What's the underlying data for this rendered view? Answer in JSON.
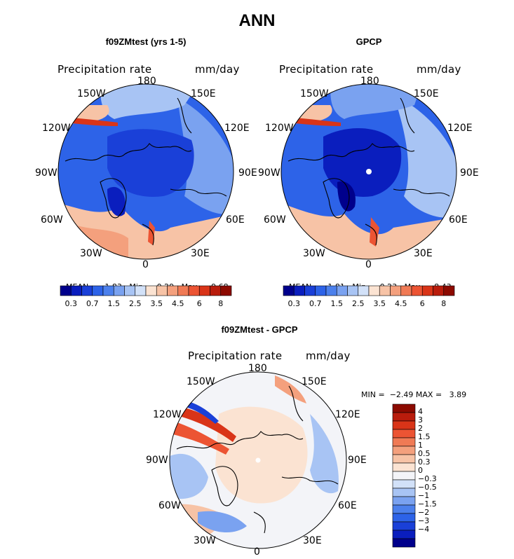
{
  "page": {
    "title": "ANN"
  },
  "panels": [
    {
      "id": "model",
      "title": "f09ZMtest (yrs 1-5)",
      "left_label": "Precipitation rate",
      "right_label": "mm/day",
      "stats": {
        "mean_label": "MEAN=",
        "mean": "1.83",
        "min_label": "Min=",
        "min": "0.29",
        "max_label": "Max=",
        "max": "9.68"
      }
    },
    {
      "id": "obs",
      "title": "GPCP",
      "left_label": "Precipitation rate",
      "right_label": "mm/day",
      "stats": {
        "mean_label": "MEAN=",
        "mean": "1.81",
        "min_label": "Min=",
        "min": "0.23",
        "max_label": "Max=",
        "max": "8.43"
      }
    },
    {
      "id": "diff",
      "title": "f09ZMtest - GPCP",
      "left_label": "Precipitation rate",
      "right_label": "mm/day",
      "stats": {
        "min_label": "MIN =",
        "min": "−2.49",
        "max_label": "MAX =",
        "max": "3.89"
      }
    }
  ],
  "longitude_labels": {
    "top": "180",
    "bottom": "0",
    "upper_left": "150W",
    "upper_right": "150E",
    "left_upper": "120W",
    "right_upper": "120E",
    "left": "90W",
    "right": "90E",
    "left_lower": "60W",
    "right_lower": "60E",
    "lower_left": "30W",
    "lower_right": "30E"
  },
  "colorbar_abs": {
    "colors": [
      "#00008c",
      "#0a1ebe",
      "#1a40d8",
      "#2d63e8",
      "#4c80ec",
      "#7aa2f0",
      "#a8c4f4",
      "#d2e1f8",
      "#fbe3d2",
      "#f7c3a6",
      "#f4a07d",
      "#f07a55",
      "#ec5433",
      "#d93418",
      "#b91c0c",
      "#8c0a00"
    ],
    "labels": [
      "0.3",
      "0.7",
      "1.5",
      "2.5",
      "3.5",
      "4.5",
      "6",
      "8"
    ]
  },
  "colorbar_diff": {
    "colors": [
      "#8c0a00",
      "#b91c0c",
      "#d93418",
      "#ec5433",
      "#f07a55",
      "#f4a07d",
      "#f7c3a6",
      "#fbe3d2",
      "#f3f4f8",
      "#d2e1f8",
      "#a8c4f4",
      "#7aa2f0",
      "#4c80ec",
      "#2d63e8",
      "#1a40d8",
      "#0a1ebe",
      "#00008c"
    ],
    "labels": [
      "4",
      "3",
      "2",
      "1.5",
      "1",
      "0.5",
      "0.3",
      "0",
      "−0.3",
      "−0.5",
      "−1",
      "−1.5",
      "−2",
      "−3",
      "−4"
    ]
  }
}
